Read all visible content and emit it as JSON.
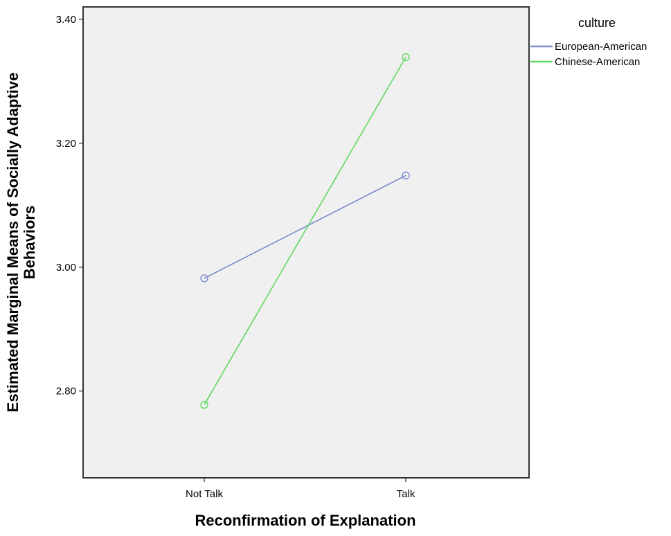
{
  "chart_data": {
    "type": "line",
    "title": "",
    "xlabel": "Reconfirmation of Explanation",
    "ylabel_lines": [
      "Estimated Marginal Means of Socially Adaptive",
      "Behaviors"
    ],
    "categories": [
      "Not Talk",
      "Talk"
    ],
    "ylim": [
      2.66,
      3.42
    ],
    "yticks": [
      2.8,
      3.0,
      3.2,
      3.4
    ],
    "ytick_labels": [
      "2.80",
      "3.00",
      "3.20",
      "3.40"
    ],
    "grid": false,
    "legend": {
      "title": "culture",
      "placement": "top-right outside"
    },
    "series": [
      {
        "name": "European-American",
        "color": "#7b8ccc",
        "values": [
          2.982,
          3.148
        ]
      },
      {
        "name": "Chinese-American",
        "color": "#5ed95e",
        "values": [
          2.778,
          3.339
        ]
      }
    ],
    "plot_background": "#f0f0f0",
    "frame_color": "#333333"
  }
}
